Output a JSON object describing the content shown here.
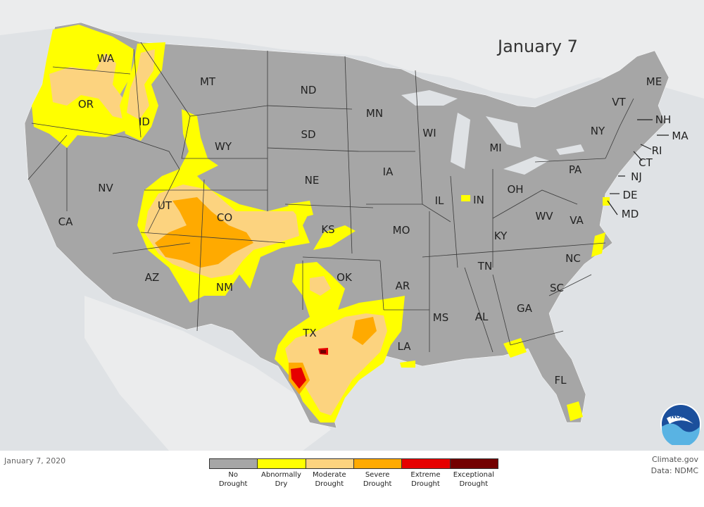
{
  "title": "January 7",
  "footer_date": "January 7, 2020",
  "credit": {
    "line1": "Climate.gov",
    "line2": "Data: NDMC"
  },
  "logo_text": "NOAA",
  "legend": [
    {
      "label": "No\nDrought",
      "color": "#a6a6a6"
    },
    {
      "label": "Abnormally\nDry",
      "color": "#ffff00"
    },
    {
      "label": "Moderate\nDrought",
      "color": "#fcd37f"
    },
    {
      "label": "Severe\nDrought",
      "color": "#ffaa00"
    },
    {
      "label": "Extreme\nDrought",
      "color": "#e60000"
    },
    {
      "label": "Exceptional\nDrought",
      "color": "#730000"
    }
  ],
  "states": [
    "WA",
    "OR",
    "CA",
    "ID",
    "NV",
    "MT",
    "WY",
    "UT",
    "AZ",
    "CO",
    "NM",
    "ND",
    "SD",
    "NE",
    "KS",
    "OK",
    "TX",
    "MN",
    "IA",
    "MO",
    "AR",
    "LA",
    "WI",
    "IL",
    "MI",
    "IN",
    "OH",
    "KY",
    "TN",
    "MS",
    "AL",
    "GA",
    "FL",
    "SC",
    "NC",
    "VA",
    "WV",
    "PA",
    "NY",
    "VT",
    "ME",
    "NH",
    "MA",
    "RI",
    "CT",
    "NJ",
    "DE",
    "MD"
  ]
}
